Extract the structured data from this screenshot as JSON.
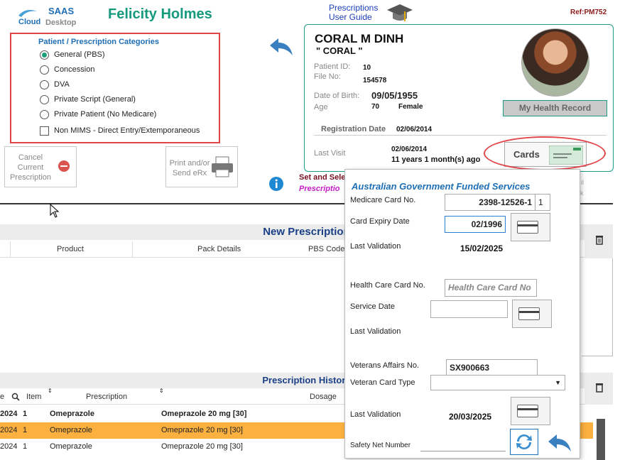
{
  "header": {
    "logo_line1": "SAAS",
    "logo_line2a": "Cloud",
    "logo_line2b": "Desktop",
    "user_name": "Felicity Holmes",
    "guide_line1": "Prescriptions",
    "guide_line2": "User Guide",
    "ref": "Ref:PM752"
  },
  "categories": {
    "title": "Patient / Prescription Categories",
    "options": [
      "General (PBS)",
      "Concession",
      "DVA",
      "Private Script (General)",
      "Private Patient (No Medicare)"
    ],
    "selected": "General (PBS)",
    "checkbox_label": "Non MIMS - Direct Entry/Extemporaneous"
  },
  "actions": {
    "cancel_line1": "Cancel",
    "cancel_line2": "Current",
    "cancel_line3": "Prescription",
    "print_line1": "Print and/or",
    "print_line2": "Send eRx",
    "set_select": "Set and Sele",
    "prescription_partial": "Prescriptio"
  },
  "patient": {
    "name": "CORAL M DINH",
    "nickname": "\" CORAL \"",
    "patient_id_label": "Patient ID:",
    "patient_id": "10",
    "file_no_label": "File No:",
    "file_no": "154578",
    "dob_label": "Date of Birth:",
    "dob": "09/05/1955",
    "age_label": "Age",
    "age": "70",
    "gender": "Female",
    "reg_label": "Registration Date",
    "reg_date": "02/06/2014",
    "last_visit_label": "Last Visit",
    "last_visit_date": "02/06/2014",
    "last_visit_ago": "11 years 1 month(s) ago",
    "health_record_btn": "My Health Record",
    "cards_btn": "Cards",
    "side_text1": "il",
    "side_text2": "k"
  },
  "new_prescription": {
    "title": "New Prescription",
    "columns": [
      "Product",
      "Pack Details",
      "PBS Code"
    ]
  },
  "history": {
    "title": "Prescription History",
    "columns": [
      "e",
      "Item",
      "Prescription",
      "Dosage"
    ],
    "rows": [
      {
        "date": "2024",
        "item": "1",
        "prescription": "Omeprazole",
        "dosage": "Omeprazole 20 mg [30]"
      },
      {
        "date": "2024",
        "item": "1",
        "prescription": "Omeprazole",
        "dosage": "Omeprazole 20 mg [30]"
      },
      {
        "date": "2024",
        "item": "1",
        "prescription": "Omeprazole",
        "dosage": "Omeprazole 20 mg [30]"
      }
    ]
  },
  "popup": {
    "title": "Australian Government Funded Services",
    "medicare_label": "Medicare Card No.",
    "medicare_no": "2398-12526-1",
    "medicare_irn": "1",
    "expiry_label": "Card Expiry Date",
    "expiry_value": "02/1996",
    "last_validation_label": "Last Validation",
    "medicare_last_validation": "15/02/2025",
    "hc_label": "Health Care Card No.",
    "hc_placeholder": "Health Care Card No",
    "service_date_label": "Service Date",
    "hc_last_validation_label": "Last Validation",
    "dva_label": "Veterans Affairs No.",
    "dva_no": "SX900663",
    "vet_type_label": "Veteran Card Type",
    "dva_last_validation_label": "Last Validation",
    "dva_last_validation": "20/03/2025",
    "safety_net_label": "Safety Net Number"
  },
  "colors": {
    "accent_teal": "#159a7e",
    "brand_blue": "#1f6fb5",
    "highlight_orange": "#fbb040",
    "alert_red": "#e0454a"
  }
}
